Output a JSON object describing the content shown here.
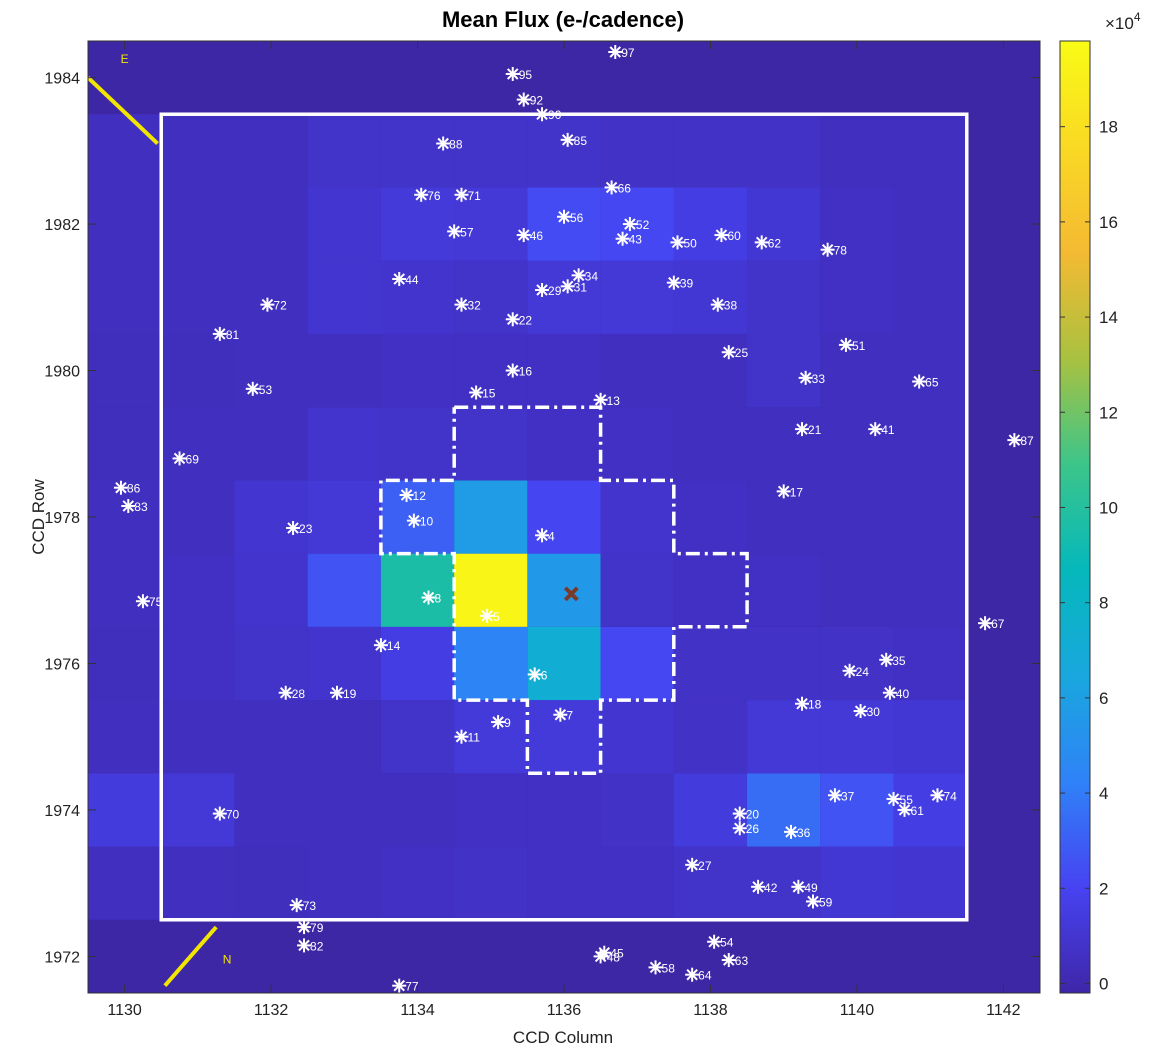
{
  "chart_data": {
    "type": "heatmap",
    "title": "Mean Flux (e-/cadence)",
    "xlabel": "CCD Column",
    "ylabel": "CCD Row",
    "xlim": [
      1129.5,
      1142.5
    ],
    "ylim": [
      1971.5,
      1984.5
    ],
    "xticks": [
      1130,
      1132,
      1134,
      1136,
      1138,
      1140,
      1142
    ],
    "yticks": [
      1972,
      1974,
      1976,
      1978,
      1980,
      1982,
      1984
    ],
    "colorbar": {
      "multiplier_label": "×10",
      "multiplier_exponent": "4",
      "ticks": [
        0,
        2,
        4,
        6,
        8,
        10,
        12,
        14,
        16,
        18
      ],
      "range": [
        -0.2,
        19.8
      ],
      "colormap": [
        "#3e26a8",
        "#4743f2",
        "#2f82f7",
        "#19a7de",
        "#05b8bb",
        "#3cc58a",
        "#a9c140",
        "#f4ba33",
        "#f9d924",
        "#f9fb15"
      ]
    },
    "grid": false,
    "pixel_grid": {
      "columns": [
        1130,
        1131,
        1132,
        1133,
        1134,
        1135,
        1136,
        1137,
        1138,
        1139,
        1140,
        1141
      ],
      "rows": [
        1973,
        1974,
        1975,
        1976,
        1977,
        1978,
        1979,
        1980,
        1981,
        1982,
        1983
      ],
      "values": [
        [
          0.5,
          0.5,
          0.4,
          0.5,
          0.6,
          0.7,
          0.6,
          0.6,
          0.8,
          0.8,
          1.1,
          1.0
        ],
        [
          1.4,
          1.2,
          0.5,
          0.5,
          0.5,
          0.6,
          0.6,
          0.7,
          1.4,
          3.5,
          2.6,
          1.6
        ],
        [
          0.5,
          0.5,
          0.5,
          0.5,
          0.8,
          1.3,
          1.3,
          1.0,
          0.7,
          1.2,
          1.2,
          1.1
        ],
        [
          0.4,
          0.6,
          0.8,
          0.9,
          1.6,
          4.4,
          7.2,
          2.2,
          0.7,
          0.7,
          0.7,
          0.6
        ],
        [
          0.5,
          0.6,
          0.9,
          2.6,
          9.6,
          19.5,
          5.6,
          0.8,
          0.6,
          0.6,
          0.5,
          0.5
        ],
        [
          0.5,
          0.5,
          1.0,
          1.2,
          3.0,
          5.8,
          2.1,
          0.9,
          0.6,
          0.5,
          0.5,
          0.5
        ],
        [
          0.4,
          0.5,
          0.5,
          0.9,
          0.8,
          0.8,
          0.6,
          0.6,
          0.5,
          0.5,
          0.5,
          0.5
        ],
        [
          0.4,
          0.4,
          0.5,
          0.5,
          0.6,
          0.6,
          0.6,
          0.5,
          0.5,
          0.8,
          0.5,
          0.5
        ],
        [
          0.5,
          0.5,
          0.5,
          1.0,
          0.9,
          0.8,
          1.2,
          1.2,
          1.1,
          0.8,
          0.6,
          0.5
        ],
        [
          0.5,
          0.5,
          0.5,
          1.0,
          1.3,
          1.2,
          2.3,
          2.2,
          1.6,
          1.1,
          0.6,
          0.5
        ],
        [
          0.5,
          0.5,
          0.5,
          0.8,
          0.8,
          0.8,
          0.8,
          0.7,
          0.7,
          0.7,
          0.5,
          0.5
        ]
      ]
    },
    "target_marker": {
      "x": 1136.1,
      "y": 1976.95,
      "color": "#7a3a2a"
    },
    "solid_box": {
      "x0": 1130.5,
      "x1": 1141.5,
      "y0": 1972.5,
      "y1": 1983.5
    },
    "aperture_dashdot": [
      [
        1134.5,
        1979.5
      ],
      [
        1136.5,
        1979.5
      ],
      [
        1136.5,
        1978.5
      ],
      [
        1137.5,
        1978.5
      ],
      [
        1137.5,
        1977.5
      ],
      [
        1138.5,
        1977.5
      ],
      [
        1138.5,
        1976.5
      ],
      [
        1137.5,
        1976.5
      ],
      [
        1137.5,
        1975.5
      ],
      [
        1136.5,
        1975.5
      ],
      [
        1136.5,
        1974.5
      ],
      [
        1135.5,
        1974.5
      ],
      [
        1135.5,
        1975.5
      ],
      [
        1134.5,
        1975.5
      ],
      [
        1134.5,
        1977.5
      ],
      [
        1133.5,
        1977.5
      ],
      [
        1133.5,
        1978.5
      ],
      [
        1134.5,
        1978.5
      ],
      [
        1134.5,
        1979.5
      ]
    ],
    "compass": {
      "east": {
        "label": "E",
        "line": [
          [
            1129.5,
            1984.0
          ],
          [
            1130.45,
            1983.1
          ]
        ],
        "label_pos": [
          1130.0,
          1984.2
        ]
      },
      "north": {
        "label": "N",
        "line": [
          [
            1130.55,
            1971.6
          ],
          [
            1131.25,
            1972.4
          ]
        ],
        "label_pos": [
          1131.4,
          1971.9
        ]
      }
    },
    "stars": [
      {
        "label": "4",
        "x": 1135.7,
        "y": 1977.75
      },
      {
        "label": "5",
        "x": 1134.95,
        "y": 1976.65
      },
      {
        "label": "6",
        "x": 1135.6,
        "y": 1975.85
      },
      {
        "label": "7",
        "x": 1135.95,
        "y": 1975.3
      },
      {
        "label": "8",
        "x": 1134.15,
        "y": 1976.9
      },
      {
        "label": "9",
        "x": 1135.1,
        "y": 1975.2
      },
      {
        "label": "10",
        "x": 1133.95,
        "y": 1977.95
      },
      {
        "label": "11",
        "x": 1134.6,
        "y": 1975.0
      },
      {
        "label": "12",
        "x": 1133.85,
        "y": 1978.3
      },
      {
        "label": "13",
        "x": 1136.5,
        "y": 1979.6
      },
      {
        "label": "14",
        "x": 1133.5,
        "y": 1976.25
      },
      {
        "label": "15",
        "x": 1134.8,
        "y": 1979.7
      },
      {
        "label": "16",
        "x": 1135.3,
        "y": 1980.0
      },
      {
        "label": "17",
        "x": 1139.0,
        "y": 1978.35
      },
      {
        "label": "18",
        "x": 1139.25,
        "y": 1975.45
      },
      {
        "label": "19",
        "x": 1132.9,
        "y": 1975.6
      },
      {
        "label": "20",
        "x": 1138.4,
        "y": 1973.95
      },
      {
        "label": "21",
        "x": 1139.25,
        "y": 1979.2
      },
      {
        "label": "22",
        "x": 1135.3,
        "y": 1980.7
      },
      {
        "label": "23",
        "x": 1132.3,
        "y": 1977.85
      },
      {
        "label": "24",
        "x": 1139.9,
        "y": 1975.9
      },
      {
        "label": "25",
        "x": 1138.25,
        "y": 1980.25
      },
      {
        "label": "26",
        "x": 1138.4,
        "y": 1973.75
      },
      {
        "label": "27",
        "x": 1137.75,
        "y": 1973.25
      },
      {
        "label": "28",
        "x": 1132.2,
        "y": 1975.6
      },
      {
        "label": "29",
        "x": 1135.7,
        "y": 1981.1
      },
      {
        "label": "30",
        "x": 1140.05,
        "y": 1975.35
      },
      {
        "label": "31",
        "x": 1136.05,
        "y": 1981.15
      },
      {
        "label": "32",
        "x": 1134.6,
        "y": 1980.9
      },
      {
        "label": "33",
        "x": 1139.3,
        "y": 1979.9
      },
      {
        "label": "34",
        "x": 1136.2,
        "y": 1981.3
      },
      {
        "label": "35",
        "x": 1140.4,
        "y": 1976.05
      },
      {
        "label": "36",
        "x": 1139.1,
        "y": 1973.7
      },
      {
        "label": "37",
        "x": 1139.7,
        "y": 1974.2
      },
      {
        "label": "38",
        "x": 1138.1,
        "y": 1980.9
      },
      {
        "label": "39",
        "x": 1137.5,
        "y": 1981.2
      },
      {
        "label": "40",
        "x": 1140.45,
        "y": 1975.6
      },
      {
        "label": "41",
        "x": 1140.25,
        "y": 1979.2
      },
      {
        "label": "42",
        "x": 1138.65,
        "y": 1972.95
      },
      {
        "label": "43",
        "x": 1136.8,
        "y": 1981.8
      },
      {
        "label": "44",
        "x": 1133.75,
        "y": 1981.25
      },
      {
        "label": "45",
        "x": 1136.55,
        "y": 1972.05
      },
      {
        "label": "46",
        "x": 1135.45,
        "y": 1981.85
      },
      {
        "label": "48",
        "x": 1136.5,
        "y": 1972.0
      },
      {
        "label": "49",
        "x": 1139.2,
        "y": 1972.95
      },
      {
        "label": "50",
        "x": 1137.55,
        "y": 1981.75
      },
      {
        "label": "51",
        "x": 1139.85,
        "y": 1980.35
      },
      {
        "label": "52",
        "x": 1136.9,
        "y": 1982.0
      },
      {
        "label": "53",
        "x": 1131.75,
        "y": 1979.75
      },
      {
        "label": "54",
        "x": 1138.05,
        "y": 1972.2
      },
      {
        "label": "55",
        "x": 1140.5,
        "y": 1974.15
      },
      {
        "label": "56",
        "x": 1136.0,
        "y": 1982.1
      },
      {
        "label": "57",
        "x": 1134.5,
        "y": 1981.9
      },
      {
        "label": "58",
        "x": 1137.25,
        "y": 1971.85
      },
      {
        "label": "59",
        "x": 1139.4,
        "y": 1972.75
      },
      {
        "label": "60",
        "x": 1138.15,
        "y": 1981.85
      },
      {
        "label": "61",
        "x": 1140.65,
        "y": 1974.0
      },
      {
        "label": "62",
        "x": 1138.7,
        "y": 1981.75
      },
      {
        "label": "63",
        "x": 1138.25,
        "y": 1971.95
      },
      {
        "label": "64",
        "x": 1137.75,
        "y": 1971.75
      },
      {
        "label": "65",
        "x": 1140.85,
        "y": 1979.85
      },
      {
        "label": "66",
        "x": 1136.65,
        "y": 1982.5
      },
      {
        "label": "67",
        "x": 1141.75,
        "y": 1976.55
      },
      {
        "label": "69",
        "x": 1130.75,
        "y": 1978.8
      },
      {
        "label": "70",
        "x": 1131.3,
        "y": 1973.95
      },
      {
        "label": "71",
        "x": 1134.6,
        "y": 1982.4
      },
      {
        "label": "72",
        "x": 1131.95,
        "y": 1980.9
      },
      {
        "label": "73",
        "x": 1132.35,
        "y": 1972.7
      },
      {
        "label": "74",
        "x": 1141.1,
        "y": 1974.2
      },
      {
        "label": "75",
        "x": 1130.25,
        "y": 1976.85
      },
      {
        "label": "76",
        "x": 1134.05,
        "y": 1982.4
      },
      {
        "label": "77",
        "x": 1133.75,
        "y": 1971.6
      },
      {
        "label": "78",
        "x": 1139.6,
        "y": 1981.65
      },
      {
        "label": "79",
        "x": 1132.45,
        "y": 1972.4
      },
      {
        "label": "81",
        "x": 1131.3,
        "y": 1980.5
      },
      {
        "label": "82",
        "x": 1132.45,
        "y": 1972.15
      },
      {
        "label": "83",
        "x": 1130.05,
        "y": 1978.15
      },
      {
        "label": "85",
        "x": 1136.05,
        "y": 1983.15
      },
      {
        "label": "86",
        "x": 1129.95,
        "y": 1978.4
      },
      {
        "label": "87",
        "x": 1142.15,
        "y": 1979.05
      },
      {
        "label": "88",
        "x": 1134.35,
        "y": 1983.1
      },
      {
        "label": "90",
        "x": 1135.7,
        "y": 1983.5
      },
      {
        "label": "92",
        "x": 1135.45,
        "y": 1983.7
      },
      {
        "label": "95",
        "x": 1135.3,
        "y": 1984.05
      },
      {
        "label": "97",
        "x": 1136.7,
        "y": 1984.35
      }
    ]
  }
}
